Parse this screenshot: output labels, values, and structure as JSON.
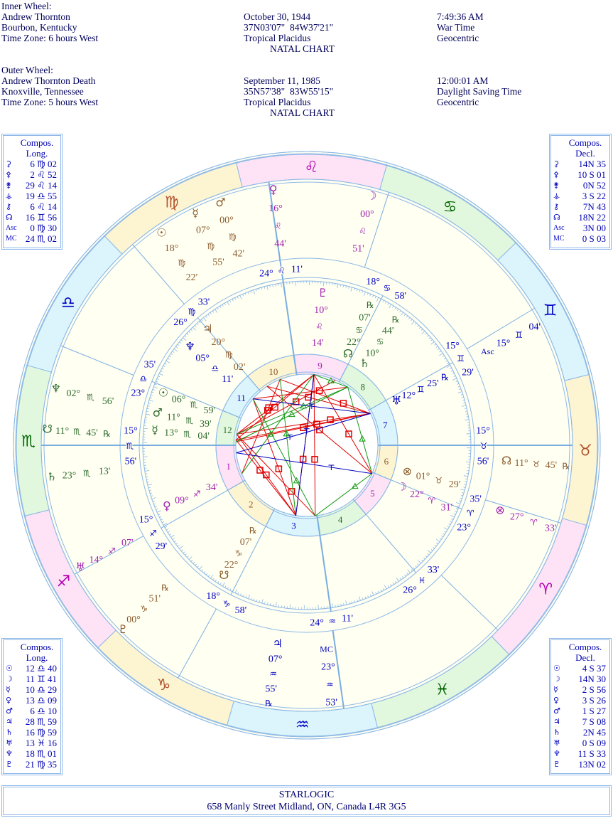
{
  "header": {
    "inner": {
      "label": "Inner Wheel:",
      "name": "Andrew Thornton",
      "place": "Bourbon, Kentucky",
      "timezone": "Time Zone: 6 hours West",
      "date": "October 30, 1944",
      "coords": "37N03'07\"  84W37'21\"",
      "system": "Tropical Placidus",
      "chart_type": "NATAL CHART",
      "time": "7:49:36 AM",
      "time_type": "War Time",
      "center": "Geocentric"
    },
    "outer": {
      "label": "Outer Wheel:",
      "name": "Andrew Thornton Death",
      "place": "Knoxville, Tennessee",
      "timezone": "Time Zone: 5 hours West",
      "date": "September 11, 1985",
      "coords": "35N57'38\"  83W55'15\"",
      "system": "Tropical Placidus",
      "chart_type": "NATAL CHART",
      "time": "12:00:01 AM",
      "time_type": "Daylight Saving Time",
      "center": "Geocentric"
    }
  },
  "tables": {
    "top_left": {
      "title1": "Compos.",
      "title2": "Long.",
      "rows": [
        {
          "glyph": "⚳",
          "value": "6 ♍ 02"
        },
        {
          "glyph": "⚴",
          "value": "2 ♌ 52"
        },
        {
          "glyph": "⚵",
          "value": "29 ♌ 14"
        },
        {
          "glyph": "⚶",
          "value": "19 ♎ 55"
        },
        {
          "glyph": "⚷",
          "value": "6 ♌ 14"
        },
        {
          "glyph": "☊",
          "value": "16 ♊ 56"
        },
        {
          "glyph": "Asc",
          "value": "0 ♍ 30"
        },
        {
          "glyph": "MC",
          "value": "24 ♏ 02"
        }
      ]
    },
    "top_right": {
      "title1": "Compos.",
      "title2": "Decl.",
      "rows": [
        {
          "glyph": "⚳",
          "value": "14N 35"
        },
        {
          "glyph": "⚴",
          "value": "10 S 01"
        },
        {
          "glyph": "⚵",
          "value": "0N 52"
        },
        {
          "glyph": "⚶",
          "value": "3 S 22"
        },
        {
          "glyph": "⚷",
          "value": "7N 43"
        },
        {
          "glyph": "☊",
          "value": "18N 22"
        },
        {
          "glyph": "Asc",
          "value": "3N 00"
        },
        {
          "glyph": "MC",
          "value": "0 S 03"
        }
      ]
    },
    "bottom_left": {
      "title1": "Compos.",
      "title2": "Long.",
      "rows": [
        {
          "glyph": "☉",
          "value": "12 ♎ 40"
        },
        {
          "glyph": "☽",
          "value": "11 ♊ 41"
        },
        {
          "glyph": "☿",
          "value": "10 ♎ 29"
        },
        {
          "glyph": "♀",
          "value": "13 ♎ 09"
        },
        {
          "glyph": "♂",
          "value": "6 ♎ 10"
        },
        {
          "glyph": "♃",
          "value": "28 ♏ 59"
        },
        {
          "glyph": "♄",
          "value": "16 ♍ 59"
        },
        {
          "glyph": "♅",
          "value": "13 ♓ 16"
        },
        {
          "glyph": "♆",
          "value": "18 ♏ 01"
        },
        {
          "glyph": "♇",
          "value": "21 ♍ 35"
        }
      ]
    },
    "bottom_right": {
      "title1": "Compos.",
      "title2": "Decl.",
      "rows": [
        {
          "glyph": "☉",
          "value": "4 S 37"
        },
        {
          "glyph": "☽",
          "value": "14N 30"
        },
        {
          "glyph": "☿",
          "value": "2 S 56"
        },
        {
          "glyph": "♀",
          "value": "3 S 26"
        },
        {
          "glyph": "♂",
          "value": "1 S 27"
        },
        {
          "glyph": "♃",
          "value": "7 S 08"
        },
        {
          "glyph": "♄",
          "value": "2N 45"
        },
        {
          "glyph": "♅",
          "value": "0 S 09"
        },
        {
          "glyph": "♆",
          "value": "11 S 33"
        },
        {
          "glyph": "♇",
          "value": "13N 02"
        }
      ]
    }
  },
  "wheel": {
    "signs": [
      "♈",
      "♉",
      "♊",
      "♋",
      "♌",
      "♍",
      "♎",
      "♏",
      "♐",
      "♑",
      "♒",
      "♓"
    ],
    "element_colors": {
      "fire": {
        "fill": "#fde3f5",
        "glyph": "#b400b4"
      },
      "earth": {
        "fill": "#fdf4d2",
        "glyph": "#b0502a"
      },
      "air": {
        "fill": "#dcf5fc",
        "glyph": "#0000c8"
      },
      "water": {
        "fill": "#e2f8de",
        "glyph": "#006400"
      }
    },
    "text_colors": {
      "fire": "#a020b0",
      "earth": "#8b5a2b",
      "air": "#0000c0",
      "water": "#2e6b2e"
    },
    "cusps": [
      {
        "house": "1",
        "deg": "15°",
        "sign": "♏",
        "min": "56'"
      },
      {
        "house": "2",
        "deg": "15°",
        "sign": "♐",
        "min": "29'"
      },
      {
        "house": "3",
        "deg": "18°",
        "sign": "♑",
        "min": "58'"
      },
      {
        "house": "4",
        "deg": "24°",
        "sign": "♒",
        "min": "11'"
      },
      {
        "house": "5",
        "deg": "26°",
        "sign": "♓",
        "min": "33'"
      },
      {
        "house": "6",
        "deg": "23°",
        "sign": "♈",
        "min": "35'"
      },
      {
        "house": "7",
        "deg": "15°",
        "sign": "♉",
        "min": "56'"
      },
      {
        "house": "8",
        "deg": "15°",
        "sign": "♊",
        "min": "29'"
      },
      {
        "house": "9",
        "deg": "18°",
        "sign": "♋",
        "min": "58'"
      },
      {
        "house": "10",
        "deg": "24°",
        "sign": "♌",
        "min": "11'"
      },
      {
        "house": "11",
        "deg": "26°",
        "sign": "♍",
        "min": "33'"
      },
      {
        "house": "12",
        "deg": "23°",
        "sign": "♎",
        "min": "35'"
      }
    ],
    "outer_planets": [
      {
        "glyph": "♀",
        "deg": "16°",
        "sign": "♌",
        "min": "44'",
        "retro": ""
      },
      {
        "glyph": "☽",
        "deg": "00°",
        "sign": "♌",
        "min": "51'",
        "retro": ""
      },
      {
        "glyph": "♂",
        "deg": "00°",
        "sign": "♍",
        "min": "42'",
        "retro": ""
      },
      {
        "glyph": "☿",
        "deg": "07°",
        "sign": "♍",
        "min": "55'",
        "retro": ""
      },
      {
        "glyph": "☉",
        "deg": "18°",
        "sign": "♍",
        "min": "22'",
        "retro": ""
      },
      {
        "glyph": "♆",
        "deg": "02°",
        "sign": "♏",
        "min": "56'",
        "retro": ""
      },
      {
        "glyph": "☋",
        "deg": "11°",
        "sign": "♏",
        "min": "45'",
        "retro": "℞"
      },
      {
        "glyph": "♄",
        "deg": "23°",
        "sign": "♏",
        "min": "13'",
        "retro": ""
      },
      {
        "glyph": "♅",
        "deg": "14°",
        "sign": "♐",
        "min": "07'",
        "retro": ""
      },
      {
        "glyph": "♇",
        "deg": "00°",
        "sign": "♑",
        "min": "51'",
        "retro": "℞"
      },
      {
        "glyph": "♃",
        "deg": "07°",
        "sign": "♒",
        "min": "55'",
        "retro": "℞"
      },
      {
        "glyph": "MC",
        "deg": "23°",
        "sign": "♒",
        "min": "53'",
        "retro": ""
      },
      {
        "glyph": "⊗",
        "deg": "27°",
        "sign": "♈",
        "min": "33'",
        "retro": ""
      },
      {
        "glyph": "☊",
        "deg": "11°",
        "sign": "♉",
        "min": "45'",
        "retro": "℞"
      },
      {
        "glyph": "Asc",
        "deg": "15°",
        "sign": "♊",
        "min": "04'",
        "retro": ""
      }
    ],
    "inner_planets": [
      {
        "glyph": "♇",
        "deg": "10°",
        "sign": "♌",
        "min": "14'",
        "retro": ""
      },
      {
        "glyph": "☊",
        "deg": "22°",
        "sign": "♋",
        "min": "07'",
        "retro": "℞"
      },
      {
        "glyph": "♄",
        "deg": "10°",
        "sign": "♋",
        "min": "44'",
        "retro": "℞"
      },
      {
        "glyph": "♃",
        "deg": "20°",
        "sign": "♍",
        "min": "02'",
        "retro": ""
      },
      {
        "glyph": "♆",
        "deg": "05°",
        "sign": "♎",
        "min": "11'",
        "retro": ""
      },
      {
        "glyph": "☉",
        "deg": "06°",
        "sign": "♏",
        "min": "59'",
        "retro": ""
      },
      {
        "glyph": "♂",
        "deg": "11°",
        "sign": "♏",
        "min": "39'",
        "retro": ""
      },
      {
        "glyph": "☿",
        "deg": "13°",
        "sign": "♏",
        "min": "04'",
        "retro": ""
      },
      {
        "glyph": "♀",
        "deg": "09°",
        "sign": "♐",
        "min": "34'",
        "retro": ""
      },
      {
        "glyph": "☋",
        "deg": "22°",
        "sign": "♑",
        "min": "07'",
        "retro": "℞"
      },
      {
        "glyph": "♅",
        "deg": "12°",
        "sign": "♊",
        "min": "25'",
        "retro": "℞"
      },
      {
        "glyph": "⊗",
        "deg": "01°",
        "sign": "♉",
        "min": "29'",
        "retro": ""
      },
      {
        "glyph": "☽",
        "deg": "22°",
        "sign": "♈",
        "min": "31'",
        "retro": ""
      }
    ],
    "aspect_colors": {
      "red": "#e00000",
      "green": "#119911",
      "blue": "#0000bb"
    },
    "aspects": [
      {
        "from": 72.42,
        "to": 216.98,
        "type": "red"
      },
      {
        "from": 72.42,
        "to": 221.65,
        "type": "red"
      },
      {
        "from": 72.42,
        "to": 223.07,
        "type": "red"
      },
      {
        "from": 72.42,
        "to": 170.03,
        "type": "red"
      },
      {
        "from": 72.42,
        "to": 158,
        "type": "red"
      },
      {
        "from": 307,
        "to": 130.23,
        "type": "red"
      },
      {
        "from": 307,
        "to": 216.98,
        "type": "red"
      },
      {
        "from": 307,
        "to": 221.65,
        "type": "red"
      },
      {
        "from": 322.7,
        "to": 216.98,
        "type": "red"
      },
      {
        "from": 322.7,
        "to": 130.23,
        "type": "red"
      },
      {
        "from": 130.23,
        "to": 221.65,
        "type": "red"
      },
      {
        "from": 130.23,
        "to": 216.98,
        "type": "red"
      },
      {
        "from": 158,
        "to": 249.57,
        "type": "red"
      },
      {
        "from": 22.52,
        "to": 130.23,
        "type": "red"
      },
      {
        "from": 22.52,
        "to": 170.03,
        "type": "red"
      },
      {
        "from": 185.18,
        "to": 307,
        "type": "red"
      },
      {
        "from": 100.73,
        "to": 185.18,
        "type": "red"
      },
      {
        "from": 112.12,
        "to": 216.98,
        "type": "red"
      },
      {
        "from": 130.23,
        "to": 100.73,
        "type": "green"
      },
      {
        "from": 100.73,
        "to": 22.52,
        "type": "green"
      },
      {
        "from": 22.52,
        "to": 322.7,
        "type": "green"
      },
      {
        "from": 100.73,
        "to": 216.98,
        "type": "green"
      },
      {
        "from": 100.73,
        "to": 223.07,
        "type": "green"
      },
      {
        "from": 307,
        "to": 158,
        "type": "green"
      },
      {
        "from": 322.7,
        "to": 185.18,
        "type": "green"
      },
      {
        "from": 249.57,
        "to": 130.23,
        "type": "green"
      },
      {
        "from": 72.42,
        "to": 185.18,
        "type": "blue"
      },
      {
        "from": 72.42,
        "to": 232,
        "type": "blue"
      },
      {
        "from": 22.52,
        "to": 232,
        "type": "blue"
      },
      {
        "from": 130.23,
        "to": 307,
        "type": "blue"
      }
    ]
  },
  "footer": {
    "company": "STARLOGIC",
    "address": "658 Manly Street   Midland, ON, Canada   L4R 3G5"
  }
}
